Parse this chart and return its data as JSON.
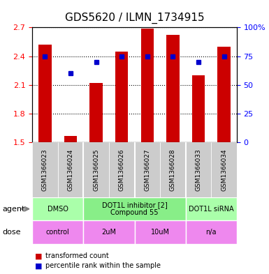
{
  "title": "GDS5620 / ILMN_1734915",
  "samples": [
    "GSM1366023",
    "GSM1366024",
    "GSM1366025",
    "GSM1366026",
    "GSM1366027",
    "GSM1366028",
    "GSM1366033",
    "GSM1366034"
  ],
  "bar_values": [
    2.52,
    1.57,
    2.12,
    2.45,
    2.69,
    2.62,
    2.2,
    2.5
  ],
  "dot_values": [
    75,
    60,
    70,
    75,
    75,
    75,
    70,
    75
  ],
  "ylim": [
    1.5,
    2.7
  ],
  "y2lim": [
    0,
    100
  ],
  "yticks": [
    1.5,
    1.8,
    2.1,
    2.4,
    2.7
  ],
  "y2ticks": [
    0,
    25,
    50,
    75,
    100
  ],
  "bar_color": "#cc0000",
  "dot_color": "#0000cc",
  "grid_color": "#000000",
  "agent_groups": [
    {
      "label": "DMSO",
      "start": 0,
      "end": 2,
      "color": "#aaffaa"
    },
    {
      "label": "DOT1L inhibitor [2]\nCompound 55",
      "start": 2,
      "end": 6,
      "color": "#88ee88"
    },
    {
      "label": "DOT1L siRNA",
      "start": 6,
      "end": 8,
      "color": "#aaffaa"
    }
  ],
  "dose_groups": [
    {
      "label": "control",
      "start": 0,
      "end": 2,
      "color": "#ee88ee"
    },
    {
      "label": "2uM",
      "start": 2,
      "end": 4,
      "color": "#ee88ee"
    },
    {
      "label": "10uM",
      "start": 4,
      "end": 6,
      "color": "#ee88ee"
    },
    {
      "label": "n/a",
      "start": 6,
      "end": 8,
      "color": "#ee88ee"
    }
  ],
  "legend_items": [
    {
      "color": "#cc0000",
      "label": "transformed count"
    },
    {
      "color": "#0000cc",
      "label": "percentile rank within the sample"
    }
  ],
  "sample_bg_color": "#cccccc",
  "arrow_color": "#888888"
}
